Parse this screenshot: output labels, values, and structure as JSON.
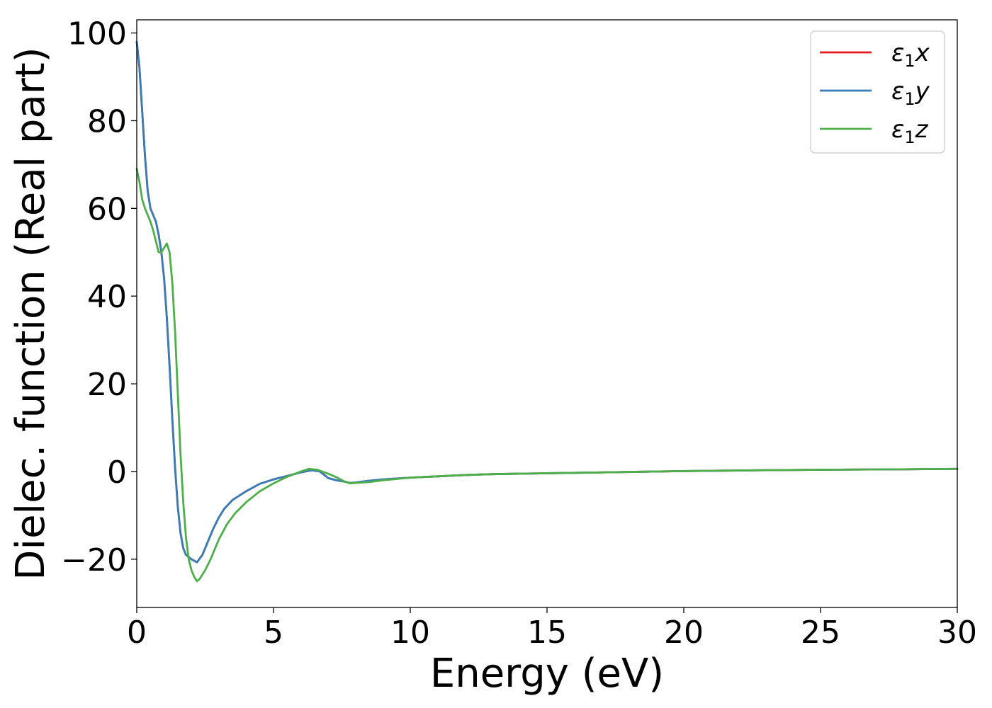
{
  "chart_data": {
    "type": "line",
    "xlabel": "Energy (eV)",
    "ylabel": "Dielec. function (Real part)",
    "xlim": [
      0,
      30
    ],
    "ylim": [
      -31,
      103
    ],
    "xticks": [
      0,
      5,
      10,
      15,
      20,
      25,
      30
    ],
    "xtick_labels": [
      "0",
      "5",
      "10",
      "15",
      "20",
      "25",
      "30"
    ],
    "yticks": [
      -20,
      0,
      20,
      40,
      60,
      80,
      100
    ],
    "ytick_labels": [
      "−20",
      "0",
      "20",
      "40",
      "60",
      "80",
      "100"
    ],
    "grid": false,
    "legend_position": "top-right",
    "series": [
      {
        "name": "ε₁x",
        "legend": {
          "base": "ε",
          "sub": "1",
          "suffix": "x"
        },
        "color": "#e41a1c",
        "points": [
          [
            0,
            98
          ],
          [
            0.1,
            92
          ],
          [
            0.2,
            82
          ],
          [
            0.3,
            72
          ],
          [
            0.4,
            64
          ],
          [
            0.5,
            60
          ],
          [
            0.6,
            58.5
          ],
          [
            0.7,
            57
          ],
          [
            0.8,
            54
          ],
          [
            0.9,
            50
          ],
          [
            1.0,
            44
          ],
          [
            1.1,
            35
          ],
          [
            1.2,
            24
          ],
          [
            1.3,
            12
          ],
          [
            1.4,
            1
          ],
          [
            1.5,
            -8
          ],
          [
            1.6,
            -14
          ],
          [
            1.7,
            -17.5
          ],
          [
            1.8,
            -19
          ],
          [
            2.0,
            -20
          ],
          [
            2.2,
            -20.7
          ],
          [
            2.4,
            -19
          ],
          [
            2.6,
            -16
          ],
          [
            2.8,
            -13
          ],
          [
            3.0,
            -10.5
          ],
          [
            3.2,
            -8.5
          ],
          [
            3.5,
            -6.5
          ],
          [
            4.0,
            -4.5
          ],
          [
            4.5,
            -2.8
          ],
          [
            5.0,
            -1.8
          ],
          [
            5.5,
            -1.0
          ],
          [
            6.0,
            -0.2
          ],
          [
            6.4,
            0.3
          ],
          [
            6.7,
            0.0
          ],
          [
            7.0,
            -1.5
          ],
          [
            7.3,
            -2.0
          ],
          [
            7.6,
            -2.3
          ],
          [
            7.8,
            -2.6
          ],
          [
            8.0,
            -2.5
          ],
          [
            8.5,
            -2.1
          ],
          [
            9.0,
            -1.8
          ],
          [
            10,
            -1.4
          ],
          [
            11,
            -1.1
          ],
          [
            12,
            -0.8
          ],
          [
            13,
            -0.6
          ],
          [
            14,
            -0.5
          ],
          [
            15,
            -0.4
          ],
          [
            17,
            -0.2
          ],
          [
            20,
            0.1
          ],
          [
            23,
            0.3
          ],
          [
            25,
            0.4
          ],
          [
            28,
            0.5
          ],
          [
            30,
            0.6
          ]
        ]
      },
      {
        "name": "ε₁y",
        "legend": {
          "base": "ε",
          "sub": "1",
          "suffix": "y"
        },
        "color": "#377eb8",
        "points": [
          [
            0,
            98
          ],
          [
            0.1,
            92
          ],
          [
            0.2,
            82
          ],
          [
            0.3,
            72
          ],
          [
            0.4,
            64
          ],
          [
            0.5,
            60
          ],
          [
            0.6,
            58.5
          ],
          [
            0.7,
            57
          ],
          [
            0.8,
            54
          ],
          [
            0.9,
            50
          ],
          [
            1.0,
            44
          ],
          [
            1.1,
            35
          ],
          [
            1.2,
            24
          ],
          [
            1.3,
            12
          ],
          [
            1.4,
            1
          ],
          [
            1.5,
            -8
          ],
          [
            1.6,
            -14
          ],
          [
            1.7,
            -17.5
          ],
          [
            1.8,
            -19
          ],
          [
            2.0,
            -20
          ],
          [
            2.2,
            -20.7
          ],
          [
            2.4,
            -19
          ],
          [
            2.6,
            -16
          ],
          [
            2.8,
            -13
          ],
          [
            3.0,
            -10.5
          ],
          [
            3.2,
            -8.5
          ],
          [
            3.5,
            -6.5
          ],
          [
            4.0,
            -4.5
          ],
          [
            4.5,
            -2.8
          ],
          [
            5.0,
            -1.8
          ],
          [
            5.5,
            -1.0
          ],
          [
            6.0,
            -0.2
          ],
          [
            6.4,
            0.3
          ],
          [
            6.7,
            0.0
          ],
          [
            7.0,
            -1.5
          ],
          [
            7.3,
            -2.0
          ],
          [
            7.6,
            -2.3
          ],
          [
            7.8,
            -2.6
          ],
          [
            8.0,
            -2.5
          ],
          [
            8.5,
            -2.1
          ],
          [
            9.0,
            -1.8
          ],
          [
            10,
            -1.4
          ],
          [
            11,
            -1.1
          ],
          [
            12,
            -0.8
          ],
          [
            13,
            -0.6
          ],
          [
            14,
            -0.5
          ],
          [
            15,
            -0.4
          ],
          [
            17,
            -0.2
          ],
          [
            20,
            0.1
          ],
          [
            23,
            0.3
          ],
          [
            25,
            0.4
          ],
          [
            28,
            0.5
          ],
          [
            30,
            0.6
          ]
        ]
      },
      {
        "name": "ε₁z",
        "legend": {
          "base": "ε",
          "sub": "1",
          "suffix": "z"
        },
        "color": "#4daf4a",
        "points": [
          [
            0,
            69
          ],
          [
            0.1,
            66
          ],
          [
            0.2,
            62
          ],
          [
            0.3,
            60
          ],
          [
            0.4,
            58.5
          ],
          [
            0.5,
            57
          ],
          [
            0.6,
            55
          ],
          [
            0.7,
            52.5
          ],
          [
            0.8,
            50
          ],
          [
            0.9,
            50
          ],
          [
            1.0,
            51
          ],
          [
            1.1,
            52
          ],
          [
            1.2,
            50
          ],
          [
            1.3,
            43
          ],
          [
            1.4,
            32
          ],
          [
            1.5,
            18
          ],
          [
            1.6,
            4
          ],
          [
            1.7,
            -7
          ],
          [
            1.8,
            -15
          ],
          [
            1.9,
            -20
          ],
          [
            2.0,
            -22.5
          ],
          [
            2.1,
            -24
          ],
          [
            2.2,
            -25
          ],
          [
            2.3,
            -24.5
          ],
          [
            2.5,
            -22.5
          ],
          [
            2.7,
            -20
          ],
          [
            3.0,
            -15.5
          ],
          [
            3.3,
            -12
          ],
          [
            3.6,
            -9.5
          ],
          [
            4.0,
            -7
          ],
          [
            4.5,
            -4.5
          ],
          [
            5.0,
            -2.7
          ],
          [
            5.5,
            -1.2
          ],
          [
            6.0,
            0.0
          ],
          [
            6.3,
            0.6
          ],
          [
            6.6,
            0.4
          ],
          [
            7.0,
            -0.5
          ],
          [
            7.3,
            -1.3
          ],
          [
            7.6,
            -2.3
          ],
          [
            7.8,
            -2.7
          ],
          [
            8.0,
            -2.6
          ],
          [
            8.5,
            -2.4
          ],
          [
            9.0,
            -2.0
          ],
          [
            10,
            -1.4
          ],
          [
            11,
            -1.1
          ],
          [
            12,
            -0.8
          ],
          [
            13,
            -0.6
          ],
          [
            14,
            -0.5
          ],
          [
            15,
            -0.4
          ],
          [
            17,
            -0.2
          ],
          [
            20,
            0.1
          ],
          [
            23,
            0.3
          ],
          [
            25,
            0.4
          ],
          [
            28,
            0.5
          ],
          [
            30,
            0.6
          ]
        ]
      }
    ]
  }
}
